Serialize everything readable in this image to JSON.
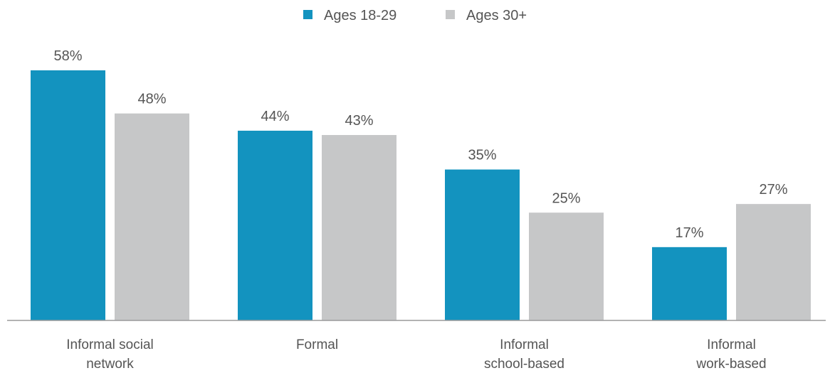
{
  "chart_data": {
    "type": "bar",
    "categories": [
      [
        "Informal social",
        "network"
      ],
      [
        "Formal"
      ],
      [
        "Informal",
        "school-based"
      ],
      [
        "Informal",
        "work-based"
      ]
    ],
    "series": [
      {
        "name": "Ages 18-29",
        "values": [
          58,
          44,
          35,
          17
        ],
        "labels": [
          "58%",
          "44%",
          "35%",
          "17%"
        ],
        "color": "#1393BF"
      },
      {
        "name": "Ages 30+",
        "values": [
          48,
          43,
          25,
          27
        ],
        "labels": [
          "48%",
          "43%",
          "25%",
          "27%"
        ],
        "color": "#C6C7C8"
      }
    ],
    "ylim": [
      0,
      58
    ],
    "grid": false,
    "legend_position": "top-center"
  }
}
